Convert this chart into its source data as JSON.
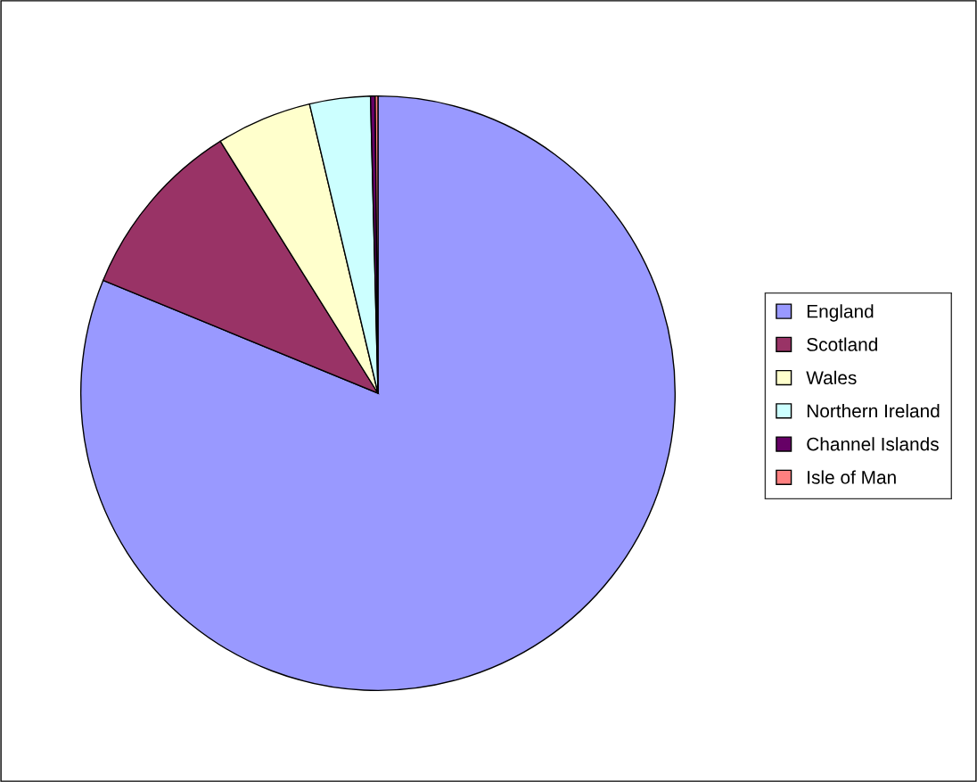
{
  "chart_data": {
    "type": "pie",
    "categories": [
      "England",
      "Scotland",
      "Wales",
      "Northern Ireland",
      "Channel Islands",
      "Isle of Man"
    ],
    "values": [
      81.2,
      9.9,
      5.2,
      3.3,
      0.25,
      0.15
    ],
    "colors": [
      "#9999ff",
      "#993366",
      "#ffffcc",
      "#ccffff",
      "#660066",
      "#ff8080"
    ],
    "legend": "right"
  }
}
